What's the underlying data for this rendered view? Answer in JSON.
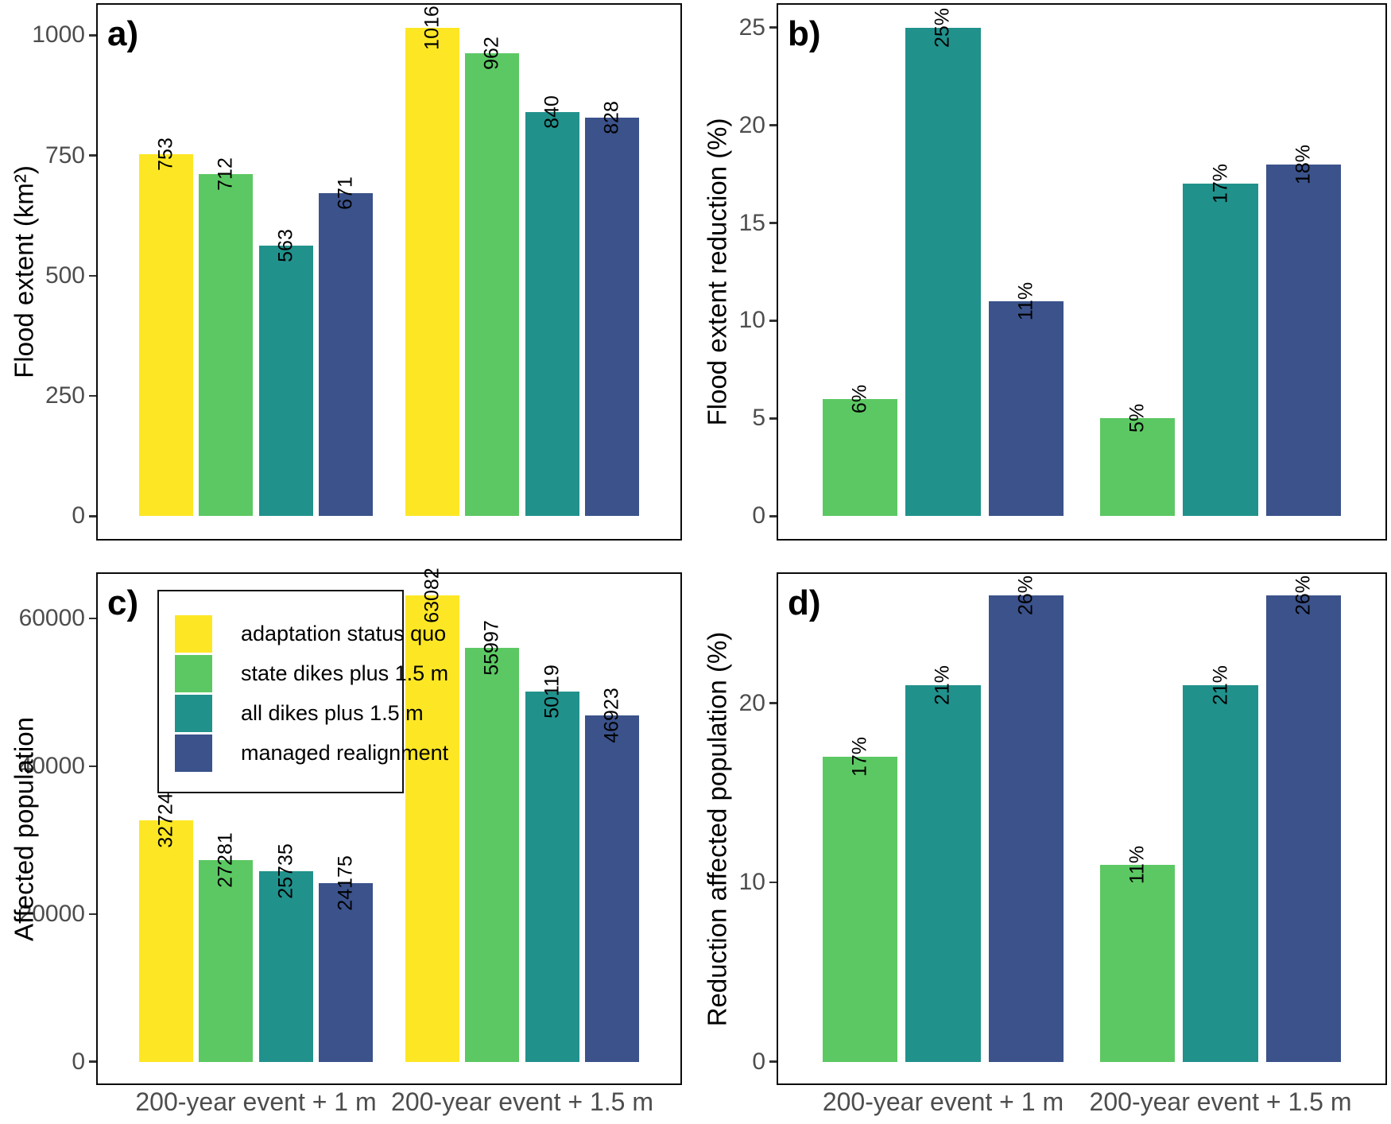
{
  "chart_data": [
    {
      "panel": "a)",
      "type": "bar",
      "ylabel": "Flood extent (km²)",
      "yticks": [
        0,
        250,
        500,
        750,
        1000
      ],
      "categories": [
        "200-year event + 1 m",
        "200-year event + 1.5 m"
      ],
      "ylim": [
        0,
        1016
      ],
      "grid": false,
      "series": [
        {
          "name": "adaptation status quo",
          "color": "#FDE725",
          "values": [
            753,
            1016
          ],
          "labels": [
            "753",
            "1016"
          ]
        },
        {
          "name": "state dikes plus 1.5 m",
          "color": "#5CC863",
          "values": [
            712,
            962
          ],
          "labels": [
            "712",
            "962"
          ]
        },
        {
          "name": "all dikes plus 1.5 m",
          "color": "#21918C",
          "values": [
            563,
            840
          ],
          "labels": [
            "563",
            "840"
          ]
        },
        {
          "name": "managed realignment",
          "color": "#3B528B",
          "values": [
            671,
            828
          ],
          "labels": [
            "671",
            "828"
          ]
        }
      ]
    },
    {
      "panel": "b)",
      "type": "bar",
      "ylabel": "Flood extent reduction (%)",
      "yticks": [
        0,
        5,
        10,
        15,
        20,
        25
      ],
      "categories": [
        "200-year event + 1 m",
        "200-year event + 1.5 m"
      ],
      "ylim": [
        0,
        25
      ],
      "grid": false,
      "series": [
        {
          "name": "state dikes plus 1.5 m",
          "color": "#5CC863",
          "values": [
            6,
            5
          ],
          "labels": [
            "6%",
            "5%"
          ]
        },
        {
          "name": "all dikes plus 1.5 m",
          "color": "#21918C",
          "values": [
            25,
            17
          ],
          "labels": [
            "25%",
            "17%"
          ]
        },
        {
          "name": "managed realignment",
          "color": "#3B528B",
          "values": [
            11,
            18
          ],
          "labels": [
            "11%",
            "18%"
          ]
        }
      ]
    },
    {
      "panel": "c)",
      "type": "bar",
      "ylabel": "Affected population",
      "yticks": [
        0,
        20000,
        40000,
        60000
      ],
      "categories": [
        "200-year event + 1 m",
        "200-year event + 1.5 m"
      ],
      "ylim": [
        0,
        63082
      ],
      "grid": false,
      "series": [
        {
          "name": "adaptation status quo",
          "color": "#FDE725",
          "values": [
            32724,
            63082
          ],
          "labels": [
            "32724",
            "63082"
          ]
        },
        {
          "name": "state dikes plus 1.5 m",
          "color": "#5CC863",
          "values": [
            27281,
            55997
          ],
          "labels": [
            "27281",
            "55997"
          ]
        },
        {
          "name": "all dikes plus 1.5 m",
          "color": "#21918C",
          "values": [
            25735,
            50119
          ],
          "labels": [
            "25735",
            "50119"
          ]
        },
        {
          "name": "managed realignment",
          "color": "#3B528B",
          "values": [
            24175,
            46923
          ],
          "labels": [
            "24175",
            "46923"
          ]
        }
      ]
    },
    {
      "panel": "d)",
      "type": "bar",
      "ylabel": "Reduction affected population (%)",
      "yticks": [
        0,
        10,
        20
      ],
      "categories": [
        "200-year event + 1 m",
        "200-year event + 1.5 m"
      ],
      "ylim": [
        0,
        26
      ],
      "grid": false,
      "series": [
        {
          "name": "state dikes plus 1.5 m",
          "color": "#5CC863",
          "values": [
            17,
            11
          ],
          "labels": [
            "17%",
            "11%"
          ]
        },
        {
          "name": "all dikes plus 1.5 m",
          "color": "#21918C",
          "values": [
            21,
            21
          ],
          "labels": [
            "21%",
            "21%"
          ]
        },
        {
          "name": "managed realignment",
          "color": "#3B528B",
          "values": [
            26,
            26
          ],
          "labels": [
            "26%",
            "26%"
          ]
        }
      ]
    }
  ],
  "legend": {
    "items": [
      {
        "label": "adaptation status quo",
        "color": "#FDE725"
      },
      {
        "label": "state dikes plus 1.5 m",
        "color": "#5CC863"
      },
      {
        "label": "all dikes plus 1.5 m",
        "color": "#21918C"
      },
      {
        "label": "managed realignment",
        "color": "#3B528B"
      }
    ]
  },
  "x_axis_labels": [
    "200-year event + 1 m",
    "200-year event + 1.5 m"
  ]
}
